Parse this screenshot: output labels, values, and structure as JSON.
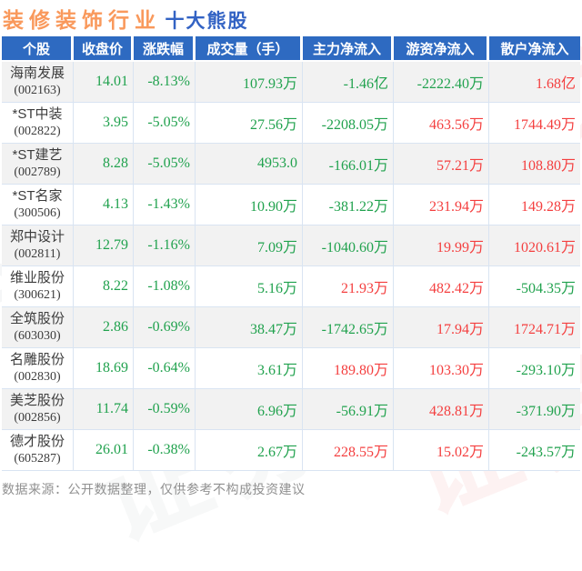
{
  "title": {
    "industry": "装修装饰行业",
    "suffix": "十大熊股"
  },
  "watermark": {
    "text": "证券之星"
  },
  "footer": {
    "text": "数据来源：公开数据整理，仅供参考不构成投资建议"
  },
  "colors": {
    "title_orange": "#f9995c",
    "title_blue": "#3363c4",
    "header_bg": "#2e6ac1",
    "value_green": "#21a24e",
    "value_red": "#f43f3f",
    "row_stripe": "#f2f2f2",
    "grid_line": "#d9e4f2",
    "footer_gray": "#909090"
  },
  "chart_data": {
    "type": "table",
    "title": "装修装饰行业 十大熊股",
    "columns": [
      "个股",
      "收盘价",
      "涨跌幅",
      "成交量（手）",
      "主力净流入",
      "游资净流入",
      "散户净流入"
    ],
    "rows": [
      {
        "name": "海南发展",
        "code": "(002163)",
        "values": [
          {
            "t": "14.01",
            "color": "green"
          },
          {
            "t": "-8.13%",
            "color": "green"
          },
          {
            "t": "107.93万",
            "color": "green"
          },
          {
            "t": "-1.46亿",
            "color": "green"
          },
          {
            "t": "-2222.40万",
            "color": "green"
          },
          {
            "t": "1.68亿",
            "color": "red"
          }
        ]
      },
      {
        "name": "*ST中装",
        "code": "(002822)",
        "values": [
          {
            "t": "3.95",
            "color": "green"
          },
          {
            "t": "-5.05%",
            "color": "green"
          },
          {
            "t": "27.56万",
            "color": "green"
          },
          {
            "t": "-2208.05万",
            "color": "green"
          },
          {
            "t": "463.56万",
            "color": "red"
          },
          {
            "t": "1744.49万",
            "color": "red"
          }
        ]
      },
      {
        "name": "*ST建艺",
        "code": "(002789)",
        "values": [
          {
            "t": "8.28",
            "color": "green"
          },
          {
            "t": "-5.05%",
            "color": "green"
          },
          {
            "t": "4953.0",
            "color": "green"
          },
          {
            "t": "-166.01万",
            "color": "green"
          },
          {
            "t": "57.21万",
            "color": "red"
          },
          {
            "t": "108.80万",
            "color": "red"
          }
        ]
      },
      {
        "name": "*ST名家",
        "code": "(300506)",
        "values": [
          {
            "t": "4.13",
            "color": "green"
          },
          {
            "t": "-1.43%",
            "color": "green"
          },
          {
            "t": "10.90万",
            "color": "green"
          },
          {
            "t": "-381.22万",
            "color": "green"
          },
          {
            "t": "231.94万",
            "color": "red"
          },
          {
            "t": "149.28万",
            "color": "red"
          }
        ]
      },
      {
        "name": "郑中设计",
        "code": "(002811)",
        "values": [
          {
            "t": "12.79",
            "color": "green"
          },
          {
            "t": "-1.16%",
            "color": "green"
          },
          {
            "t": "7.09万",
            "color": "green"
          },
          {
            "t": "-1040.60万",
            "color": "green"
          },
          {
            "t": "19.99万",
            "color": "red"
          },
          {
            "t": "1020.61万",
            "color": "red"
          }
        ]
      },
      {
        "name": "维业股份",
        "code": "(300621)",
        "values": [
          {
            "t": "8.22",
            "color": "green"
          },
          {
            "t": "-1.08%",
            "color": "green"
          },
          {
            "t": "5.16万",
            "color": "green"
          },
          {
            "t": "21.93万",
            "color": "red"
          },
          {
            "t": "482.42万",
            "color": "red"
          },
          {
            "t": "-504.35万",
            "color": "green"
          }
        ]
      },
      {
        "name": "全筑股份",
        "code": "(603030)",
        "values": [
          {
            "t": "2.86",
            "color": "green"
          },
          {
            "t": "-0.69%",
            "color": "green"
          },
          {
            "t": "38.47万",
            "color": "green"
          },
          {
            "t": "-1742.65万",
            "color": "green"
          },
          {
            "t": "17.94万",
            "color": "red"
          },
          {
            "t": "1724.71万",
            "color": "red"
          }
        ]
      },
      {
        "name": "名雕股份",
        "code": "(002830)",
        "values": [
          {
            "t": "18.69",
            "color": "green"
          },
          {
            "t": "-0.64%",
            "color": "green"
          },
          {
            "t": "3.61万",
            "color": "green"
          },
          {
            "t": "189.80万",
            "color": "red"
          },
          {
            "t": "103.30万",
            "color": "red"
          },
          {
            "t": "-293.10万",
            "color": "green"
          }
        ]
      },
      {
        "name": "美芝股份",
        "code": "(002856)",
        "values": [
          {
            "t": "11.74",
            "color": "green"
          },
          {
            "t": "-0.59%",
            "color": "green"
          },
          {
            "t": "6.96万",
            "color": "green"
          },
          {
            "t": "-56.91万",
            "color": "green"
          },
          {
            "t": "428.81万",
            "color": "red"
          },
          {
            "t": "-371.90万",
            "color": "green"
          }
        ]
      },
      {
        "name": "德才股份",
        "code": "(605287)",
        "values": [
          {
            "t": "26.01",
            "color": "green"
          },
          {
            "t": "-0.38%",
            "color": "green"
          },
          {
            "t": "2.67万",
            "color": "green"
          },
          {
            "t": "228.55万",
            "color": "red"
          },
          {
            "t": "15.02万",
            "color": "red"
          },
          {
            "t": "-243.57万",
            "color": "green"
          }
        ]
      }
    ]
  }
}
